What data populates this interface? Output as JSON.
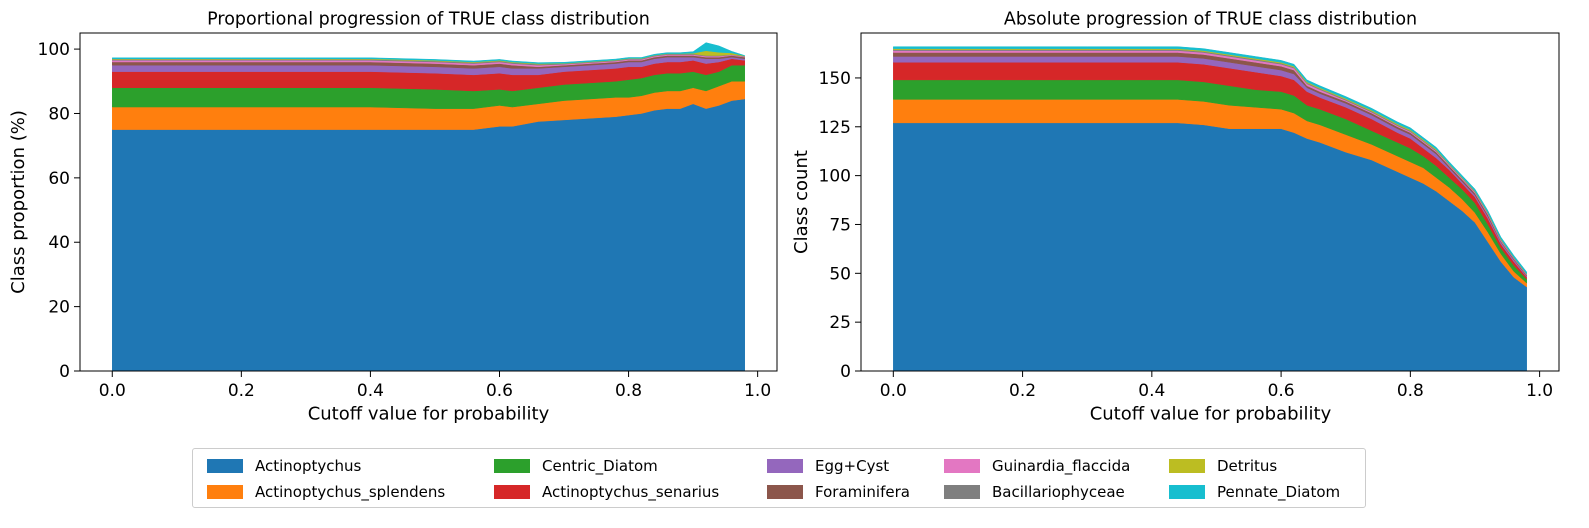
{
  "figure": {
    "legend_placement": "bottom-center"
  },
  "chart_data": [
    {
      "type": "area",
      "stacked": true,
      "title": "Proportional progression of TRUE class distribution",
      "xlabel": "Cutoff value for probability",
      "ylabel": "Class proportion (%)",
      "xlim": [
        -0.05,
        1.03
      ],
      "ylim": [
        0,
        105
      ],
      "xticks": [
        "0.0",
        "0.2",
        "0.4",
        "0.6",
        "0.8",
        "1.0"
      ],
      "yticks": [
        "0",
        "20",
        "40",
        "60",
        "80",
        "100"
      ],
      "grid": false,
      "x": [
        0.0,
        0.1,
        0.2,
        0.3,
        0.4,
        0.5,
        0.56,
        0.6,
        0.62,
        0.66,
        0.7,
        0.74,
        0.78,
        0.8,
        0.82,
        0.84,
        0.86,
        0.88,
        0.9,
        0.92,
        0.94,
        0.96,
        0.98
      ],
      "series": [
        {
          "name": "Actinoptychus",
          "color": "#1f77b4",
          "values": [
            75,
            75,
            75,
            75,
            75,
            75,
            75,
            76,
            76,
            77.5,
            78,
            78.5,
            79,
            79.5,
            80,
            81,
            81.5,
            81.5,
            83,
            81.5,
            82.5,
            84,
            84.5
          ]
        },
        {
          "name": "Actinoptychus_splendens",
          "color": "#ff7f0e",
          "values": [
            7,
            7,
            7,
            7,
            7,
            6.5,
            6.5,
            6.5,
            6,
            5.5,
            6,
            6,
            6,
            5.5,
            5.5,
            5.5,
            5.5,
            5.5,
            5,
            5.5,
            6,
            6,
            5.5
          ]
        },
        {
          "name": "Centric_Diatom",
          "color": "#2ca02c",
          "values": [
            6,
            6,
            6,
            6,
            6,
            6,
            5.5,
            5,
            5,
            5,
            5,
            5,
            5,
            5.5,
            5.5,
            5.5,
            5.5,
            5.5,
            5,
            5,
            4.5,
            5,
            5
          ]
        },
        {
          "name": "Actinoptychus_senarius",
          "color": "#d62728",
          "values": [
            5,
            5,
            5,
            5,
            5,
            5,
            5,
            5,
            5,
            4,
            4,
            4,
            4,
            4,
            3.5,
            3.5,
            3.5,
            3.5,
            3.5,
            3.5,
            3,
            2,
            1.5
          ]
        },
        {
          "name": "Egg+Cyst",
          "color": "#9467bd",
          "values": [
            2,
            2,
            2,
            2,
            2,
            2,
            2,
            2,
            2,
            2,
            1.5,
            1.5,
            1.5,
            1.5,
            1.5,
            1.5,
            1.5,
            1.5,
            1,
            1.5,
            1,
            0.5,
            0.5
          ]
        },
        {
          "name": "Foraminifera",
          "color": "#8c564b",
          "values": [
            1,
            1,
            1,
            1,
            1,
            1,
            1,
            1,
            1,
            0.5,
            0.5,
            0.5,
            0.5,
            0.5,
            0.5,
            0.5,
            0.5,
            0.5,
            0.5,
            0.5,
            0.5,
            0.5,
            0.5
          ]
        },
        {
          "name": "Guinardia_flaccida",
          "color": "#e377c2",
          "values": [
            0.5,
            0.5,
            0.5,
            0.5,
            0.5,
            0.5,
            0.5,
            0.5,
            0.5,
            0.5,
            0.3,
            0.3,
            0.3,
            0.3,
            0.3,
            0.3,
            0.3,
            0.3,
            0.3,
            0.3,
            0.3,
            0.2,
            0.2
          ]
        },
        {
          "name": "Bacillariophyceae",
          "color": "#7f7f7f",
          "values": [
            0.3,
            0.3,
            0.3,
            0.3,
            0.3,
            0.3,
            0.3,
            0.3,
            0.3,
            0.3,
            0.2,
            0.2,
            0.2,
            0.2,
            0.2,
            0.2,
            0.2,
            0.2,
            0.2,
            0.2,
            0.2,
            0.1,
            0.1
          ]
        },
        {
          "name": "Detritus",
          "color": "#bcbd22",
          "values": [
            0.2,
            0.2,
            0.2,
            0.2,
            0.2,
            0.2,
            0.2,
            0.2,
            0.2,
            0.2,
            0.1,
            0.1,
            0.1,
            0.1,
            0.1,
            0.1,
            0.1,
            0.1,
            0.2,
            1.5,
            1.0,
            0.5,
            0.1
          ]
        },
        {
          "name": "Pennate_Diatom",
          "color": "#17becf",
          "values": [
            0.3,
            0.3,
            0.3,
            0.3,
            0.3,
            0.3,
            0.3,
            0.3,
            0.3,
            0.3,
            0.3,
            0.3,
            0.3,
            0.3,
            0.3,
            0.3,
            0.3,
            0.3,
            0.5,
            2.5,
            2.0,
            0.5,
            0.1
          ]
        }
      ]
    },
    {
      "type": "area",
      "stacked": true,
      "title": "Absolute progression of TRUE class distribution",
      "xlabel": "Cutoff value for probability",
      "ylabel": "Class count",
      "xlim": [
        -0.05,
        1.03
      ],
      "ylim": [
        0,
        173
      ],
      "xticks": [
        "0.0",
        "0.2",
        "0.4",
        "0.6",
        "0.8",
        "1.0"
      ],
      "yticks": [
        "0",
        "25",
        "50",
        "75",
        "100",
        "125",
        "150"
      ],
      "grid": false,
      "x": [
        0.0,
        0.1,
        0.2,
        0.3,
        0.4,
        0.44,
        0.48,
        0.52,
        0.56,
        0.6,
        0.62,
        0.64,
        0.66,
        0.7,
        0.74,
        0.78,
        0.8,
        0.82,
        0.84,
        0.86,
        0.88,
        0.9,
        0.92,
        0.94,
        0.96,
        0.98
      ],
      "series": [
        {
          "name": "Actinoptychus",
          "color": "#1f77b4",
          "values": [
            127,
            127,
            127,
            127,
            127,
            127,
            126,
            124,
            124,
            124,
            122,
            119,
            117,
            112,
            108,
            102,
            99,
            96,
            92,
            87,
            82,
            76,
            66,
            56,
            48,
            43
          ]
        },
        {
          "name": "Actinoptychus_splendens",
          "color": "#ff7f0e",
          "values": [
            12,
            12,
            12,
            12,
            12,
            12,
            12,
            12,
            11,
            10,
            10,
            9,
            9,
            9,
            8,
            8,
            8,
            8,
            7,
            7,
            6,
            5,
            5,
            4,
            3,
            2
          ]
        },
        {
          "name": "Centric_Diatom",
          "color": "#2ca02c",
          "values": [
            10,
            10,
            10,
            10,
            10,
            10,
            10,
            10,
            9,
            9,
            9,
            8,
            8,
            8,
            7,
            7,
            7,
            6,
            6,
            5,
            5,
            5,
            4,
            3,
            3,
            2
          ]
        },
        {
          "name": "Actinoptychus_senarius",
          "color": "#d62728",
          "values": [
            9,
            9,
            9,
            9,
            9,
            9,
            9,
            9,
            9,
            8,
            8,
            7,
            6,
            6,
            6,
            5,
            5,
            4,
            4,
            4,
            3,
            3,
            3,
            2,
            2,
            1
          ]
        },
        {
          "name": "Egg+Cyst",
          "color": "#9467bd",
          "values": [
            3,
            3,
            3,
            3,
            3,
            3,
            3,
            3,
            3,
            3,
            3,
            2,
            2,
            2,
            2,
            2,
            2,
            2,
            2,
            1,
            1,
            1,
            1,
            1,
            1,
            0.5
          ]
        },
        {
          "name": "Foraminifera",
          "color": "#8c564b",
          "values": [
            2,
            2,
            2,
            2,
            2,
            2,
            2,
            2,
            2,
            2,
            2,
            1,
            1,
            1,
            1,
            1,
            1,
            1,
            1,
            1,
            1,
            1,
            1,
            0.5,
            0.5,
            0.5
          ]
        },
        {
          "name": "Guinardia_flaccida",
          "color": "#e377c2",
          "values": [
            1,
            1,
            1,
            1,
            1,
            1,
            1,
            1,
            1,
            1,
            1,
            1,
            1,
            0.5,
            0.5,
            0.5,
            0.5,
            0.5,
            0.5,
            0.5,
            0.5,
            0.5,
            0.5,
            0.5,
            0.3,
            0.3
          ]
        },
        {
          "name": "Bacillariophyceae",
          "color": "#7f7f7f",
          "values": [
            0.5,
            0.5,
            0.5,
            0.5,
            0.5,
            0.5,
            0.5,
            0.5,
            0.5,
            0.5,
            0.5,
            0.5,
            0.5,
            0.5,
            0.5,
            0.5,
            0.5,
            0.5,
            0.5,
            0.3,
            0.3,
            0.3,
            0.3,
            0.3,
            0.2,
            0.2
          ]
        },
        {
          "name": "Detritus",
          "color": "#bcbd22",
          "values": [
            0.5,
            0.5,
            0.5,
            0.5,
            0.5,
            0.5,
            0.5,
            0.5,
            0.5,
            0.5,
            0.5,
            0.5,
            0.5,
            0.5,
            0.5,
            0.5,
            0.5,
            0.5,
            0.5,
            0.3,
            0.3,
            0.3,
            0.3,
            0.3,
            0.2,
            0.2
          ]
        },
        {
          "name": "Pennate_Diatom",
          "color": "#17becf",
          "values": [
            1,
            1,
            1,
            1,
            1,
            1,
            1,
            1,
            1,
            1,
            1,
            1,
            1,
            1,
            1,
            1,
            1,
            1,
            1,
            1,
            1,
            1,
            1,
            1,
            1,
            1
          ]
        }
      ]
    }
  ]
}
